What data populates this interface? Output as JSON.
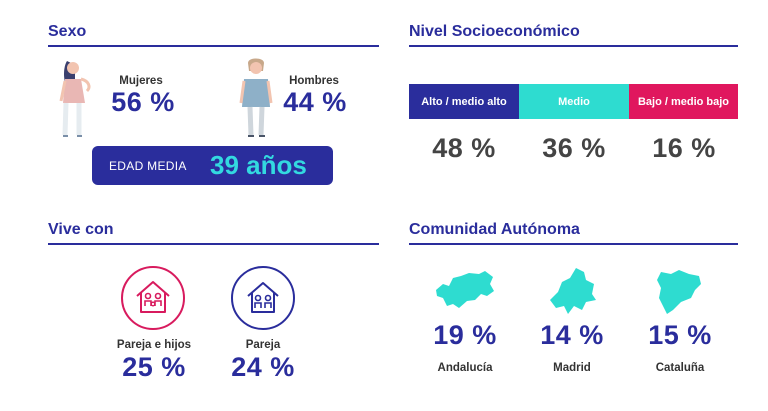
{
  "sexo": {
    "title": "Sexo",
    "mujeres_label": "Mujeres",
    "mujeres_value": "56 %",
    "hombres_label": "Hombres",
    "hombres_value": "44 %",
    "edad_label": "EDAD MEDIA",
    "edad_value": "39 años"
  },
  "nse": {
    "title": "Nivel Socioeconómico",
    "segments": [
      {
        "label": "Alto / medio alto",
        "value": "48 %",
        "color": "#2a2d9c"
      },
      {
        "label": "Medio",
        "value": "36 %",
        "color": "#2edcd0"
      },
      {
        "label": "Bajo / medio bajo",
        "value": "16 %",
        "color": "#e0175e"
      }
    ]
  },
  "vive_con": {
    "title": "Vive con",
    "items": [
      {
        "label": "Pareja e hijos",
        "value": "25 %",
        "icon": "family-home-icon",
        "color": "#d81b5e"
      },
      {
        "label": "Pareja",
        "value": "24 %",
        "icon": "couple-home-icon",
        "color": "#2a2d9c"
      }
    ]
  },
  "comunidad": {
    "title": "Comunidad Autónoma",
    "items": [
      {
        "label": "Andalucía",
        "value": "19 %",
        "icon": "andalucia-map-icon"
      },
      {
        "label": "Madrid",
        "value": "14 %",
        "icon": "madrid-map-icon"
      },
      {
        "label": "Cataluña",
        "value": "15 %",
        "icon": "cataluna-map-icon"
      }
    ],
    "map_color": "#2edcd0"
  },
  "colors": {
    "primary": "#2a2d9c",
    "accent": "#2edcd0",
    "magenta": "#e0175e"
  }
}
